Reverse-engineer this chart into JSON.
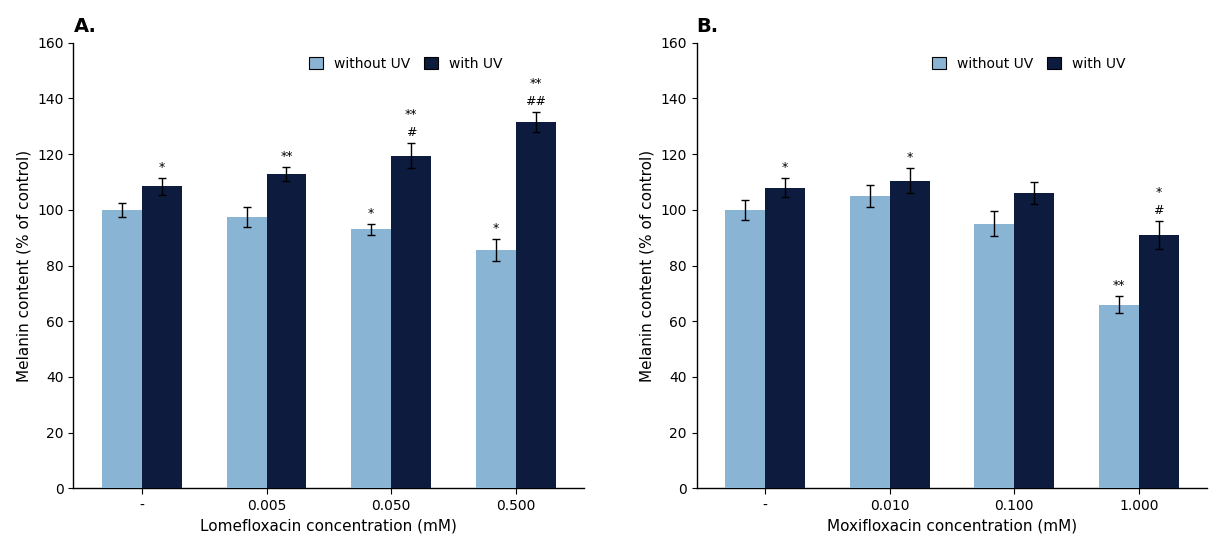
{
  "panel_A": {
    "title": "A.",
    "xlabel": "Lomefloxacin concentration (mM)",
    "ylabel": "Melanin content (% of control)",
    "categories": [
      "-",
      "0.005",
      "0.050",
      "0.500"
    ],
    "without_uv": [
      100.0,
      97.5,
      93.0,
      85.5
    ],
    "with_uv": [
      108.5,
      113.0,
      119.5,
      131.5
    ],
    "without_uv_err": [
      2.5,
      3.5,
      2.0,
      4.0
    ],
    "with_uv_err": [
      3.0,
      2.5,
      4.5,
      3.5
    ],
    "without_uv_annot": [
      "",
      "",
      "*",
      "*"
    ],
    "with_uv_annot": [
      "*",
      "**",
      "**\n#",
      "**\n##"
    ],
    "ylim": [
      0,
      160
    ],
    "yticks": [
      0,
      20,
      40,
      60,
      80,
      100,
      120,
      140,
      160
    ]
  },
  "panel_B": {
    "title": "B.",
    "xlabel": "Moxifloxacin concentration (mM)",
    "ylabel": "Melanin content (% of control)",
    "categories": [
      "-",
      "0.010",
      "0.100",
      "1.000"
    ],
    "without_uv": [
      100.0,
      105.0,
      95.0,
      66.0
    ],
    "with_uv": [
      108.0,
      110.5,
      106.0,
      91.0
    ],
    "without_uv_err": [
      3.5,
      4.0,
      4.5,
      3.0
    ],
    "with_uv_err": [
      3.5,
      4.5,
      4.0,
      5.0
    ],
    "without_uv_annot": [
      "",
      "",
      "",
      "**"
    ],
    "with_uv_annot": [
      "*",
      "*",
      "",
      "*\n#"
    ],
    "ylim": [
      0,
      160
    ],
    "yticks": [
      0,
      20,
      40,
      60,
      80,
      100,
      120,
      140,
      160
    ]
  },
  "color_without_uv": "#8ab4d4",
  "color_with_uv": "#0d1b3e",
  "bar_width": 0.32,
  "legend_labels": [
    "without UV",
    "with UV"
  ],
  "figsize": [
    12.24,
    5.5
  ],
  "dpi": 100
}
